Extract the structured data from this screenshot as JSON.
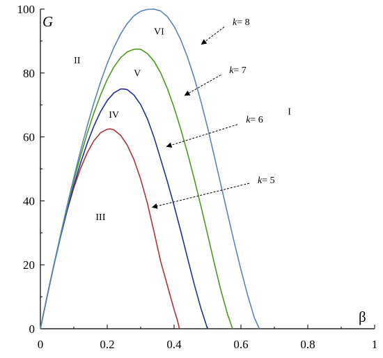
{
  "chart_data": {
    "type": "line",
    "xlabel": "β",
    "ylabel": "G",
    "xlim": [
      0,
      1
    ],
    "ylim": [
      0,
      100
    ],
    "x_ticks": [
      "0",
      "0.2",
      "0.4",
      "0.6",
      "0.8",
      "1"
    ],
    "y_ticks": [
      "0",
      "20",
      "40",
      "60",
      "80",
      "100"
    ],
    "grid": false,
    "series": [
      {
        "color": "#b3303d",
        "x": [
          0,
          0.02,
          0.04,
          0.06,
          0.08,
          0.1,
          0.12,
          0.14,
          0.16,
          0.18,
          0.2,
          0.21,
          0.22,
          0.24,
          0.26,
          0.28,
          0.3,
          0.32,
          0.34,
          0.36,
          0.38,
          0.4,
          0.41,
          0.416
        ],
        "values": [
          0,
          10.2,
          19.9,
          28.9,
          37.0,
          44.1,
          50.1,
          55.0,
          58.8,
          61.3,
          62.4,
          62.5,
          62.2,
          60.5,
          57.4,
          52.9,
          46.8,
          39.3,
          30.3,
          21.0,
          13.5,
          6.0,
          2.6,
          0
        ]
      },
      {
        "color": "#1f2f9c",
        "x": [
          0,
          0.02,
          0.04,
          0.06,
          0.08,
          0.1,
          0.12,
          0.14,
          0.16,
          0.18,
          0.2,
          0.22,
          0.24,
          0.25,
          0.26,
          0.28,
          0.3,
          0.32,
          0.34,
          0.36,
          0.38,
          0.4,
          0.42,
          0.44,
          0.46,
          0.48,
          0.5
        ],
        "values": [
          0,
          10.0,
          19.6,
          28.6,
          37.0,
          44.8,
          51.8,
          58.0,
          63.4,
          67.9,
          71.4,
          73.8,
          75.0,
          75.0,
          74.8,
          73.1,
          70.1,
          65.7,
          59.9,
          53.0,
          46.0,
          38.5,
          30.5,
          22.2,
          14.0,
          6.5,
          0
        ]
      },
      {
        "color": "#4f9a1f",
        "x": [
          0,
          0.02,
          0.04,
          0.06,
          0.08,
          0.1,
          0.12,
          0.14,
          0.16,
          0.18,
          0.2,
          0.22,
          0.24,
          0.26,
          0.28,
          0.29,
          0.3,
          0.32,
          0.34,
          0.36,
          0.38,
          0.4,
          0.42,
          0.44,
          0.46,
          0.48,
          0.5,
          0.52,
          0.54,
          0.56,
          0.575
        ],
        "values": [
          0,
          10.0,
          19.7,
          29.0,
          37.9,
          46.3,
          54.0,
          61.1,
          67.5,
          73.1,
          78.0,
          81.9,
          84.8,
          86.6,
          87.4,
          87.5,
          87.4,
          86.1,
          83.7,
          80.0,
          75.1,
          69.2,
          62.4,
          55.0,
          47.0,
          38.5,
          29.6,
          20.6,
          12.0,
          4.5,
          0
        ]
      },
      {
        "color": "#5a86b5",
        "x": [
          0,
          0.02,
          0.04,
          0.06,
          0.08,
          0.1,
          0.12,
          0.14,
          0.16,
          0.18,
          0.2,
          0.22,
          0.24,
          0.26,
          0.28,
          0.3,
          0.32,
          0.34,
          0.36,
          0.38,
          0.4,
          0.42,
          0.44,
          0.46,
          0.48,
          0.5,
          0.52,
          0.54,
          0.56,
          0.58,
          0.6,
          0.62,
          0.64,
          0.655
        ],
        "values": [
          0,
          10.0,
          19.8,
          29.3,
          38.5,
          47.3,
          55.6,
          63.4,
          70.6,
          77.2,
          83.0,
          88.0,
          92.2,
          95.5,
          97.9,
          99.3,
          99.9,
          100.0,
          99.4,
          97.6,
          94.6,
          90.4,
          85.0,
          78.6,
          71.2,
          63.0,
          54.1,
          45.0,
          36.0,
          27.0,
          18.5,
          10.5,
          3.5,
          0
        ]
      }
    ],
    "regions": [
      {
        "label": "I",
        "x": 0.745,
        "y": 67
      },
      {
        "label": "II",
        "x": 0.11,
        "y": 83
      },
      {
        "label": "III",
        "x": 0.18,
        "y": 34
      },
      {
        "label": "IV",
        "x": 0.22,
        "y": 66
      },
      {
        "label": "V",
        "x": 0.29,
        "y": 79
      },
      {
        "label": "VI",
        "x": 0.355,
        "y": 92
      }
    ],
    "annotations": [
      {
        "var": "k",
        "text": "= 8",
        "x": 0.575,
        "y": 95,
        "arrow_from": [
          0.55,
          94.4
        ],
        "arrow_to": [
          0.482,
          89
        ]
      },
      {
        "var": "k",
        "text": "= 7",
        "x": 0.565,
        "y": 80,
        "arrow_from": [
          0.54,
          79.4
        ],
        "arrow_to": [
          0.432,
          73
        ]
      },
      {
        "var": "k",
        "text": "= 6",
        "x": 0.615,
        "y": 64.5,
        "arrow_from": [
          0.59,
          63.9
        ],
        "arrow_to": [
          0.378,
          57
        ]
      },
      {
        "var": "k",
        "text": "= 5",
        "x": 0.65,
        "y": 45.5,
        "arrow_from": [
          0.625,
          45.5
        ],
        "arrow_to": [
          0.335,
          38
        ]
      }
    ]
  }
}
